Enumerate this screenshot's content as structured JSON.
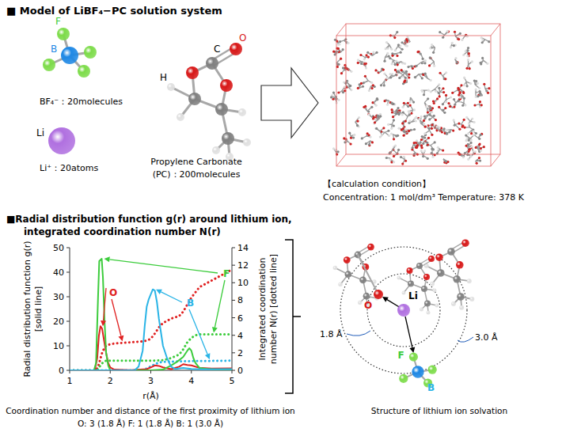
{
  "model": {
    "heading": "■ Model of LiBF₄−PC solution system",
    "bf4": {
      "atom_labels": [
        "F",
        "B"
      ],
      "caption": "BF₄⁻：20molecules"
    },
    "li": {
      "label": "Li",
      "caption": "Li⁺：20atoms"
    },
    "pc": {
      "atom_labels": [
        "H",
        "C",
        "O"
      ],
      "caption": [
        "Propylene Carbonate",
        "(PC)：200molecules"
      ]
    },
    "condition": {
      "heading": "【calculation condition】",
      "text": "Concentration: 1 mol/dm³ Temperature: 378 K"
    }
  },
  "rdf": {
    "heading": [
      "■Radial distribution function g(r) around lithium ion,",
      "integrated coordination number N(r)"
    ],
    "summary": [
      "Coordination number and distance of the first proximity of lithium ion",
      "O: 3 (1.8 Å) F: 1 (1.8 Å) B: 1 (3.0 Å)"
    ]
  },
  "structure": {
    "caption": "Structure of lithium ion solvation",
    "atom_labels": [
      "O",
      "Li",
      "F",
      "B"
    ],
    "distances": [
      "1.8 Å",
      "3.0 Å"
    ]
  },
  "chart_data": {
    "type": "line",
    "x_label": "r(Å)",
    "y_label": [
      "Radial distribution function g(r)",
      "[solid line]"
    ],
    "y2_label": [
      "Integrated coordination",
      "number N(r) [dotted line]"
    ],
    "xlim": [
      1,
      5
    ],
    "xticks": [
      1,
      2,
      3,
      4,
      5
    ],
    "ylim": [
      0,
      50
    ],
    "yticks": [
      0,
      10,
      20,
      30,
      40,
      50
    ],
    "y2lim": [
      0,
      14
    ],
    "y2ticks": [
      0,
      2,
      4,
      6,
      8,
      10,
      12,
      14
    ],
    "series": [
      {
        "name": "O",
        "color": "#e02020",
        "line_style": "solid",
        "x": [
          1,
          1.62,
          1.68,
          1.72,
          1.76,
          1.8,
          1.85,
          1.9,
          1.95,
          2.0,
          2.1,
          2.5,
          2.9,
          3.0,
          3.1,
          3.2,
          3.3,
          3.5,
          3.7,
          3.8,
          3.9,
          4.0,
          4.2,
          4.5,
          5.0
        ],
        "values": [
          0,
          0,
          5,
          14,
          18,
          17,
          12,
          7,
          3,
          1.2,
          0.3,
          0.1,
          0.5,
          1.2,
          2,
          1.8,
          1.2,
          0.5,
          1.5,
          2.5,
          2.2,
          2,
          1,
          0.7,
          0.8
        ]
      },
      {
        "name": "F",
        "color": "#3ccc3c",
        "line_style": "solid",
        "x": [
          1,
          1.6,
          1.65,
          1.7,
          1.73,
          1.76,
          1.79,
          1.82,
          1.86,
          1.9,
          1.95,
          2.0,
          2.5,
          3.0,
          3.3,
          3.5,
          3.65,
          3.8,
          3.9,
          3.95,
          4.0,
          4.05,
          4.1,
          4.2,
          4.4,
          4.6,
          5.0
        ],
        "values": [
          0,
          0,
          3,
          30,
          44.5,
          45,
          45.5,
          38,
          20,
          7,
          2,
          0,
          0,
          0,
          0.3,
          2,
          3.5,
          5.5,
          8,
          9,
          8,
          5,
          3,
          1,
          0.6,
          0.4,
          0.4
        ]
      },
      {
        "name": "B",
        "color": "#2ab4e6",
        "line_style": "solid",
        "x": [
          1,
          2.6,
          2.7,
          2.8,
          2.85,
          2.9,
          2.95,
          3.0,
          3.05,
          3.1,
          3.15,
          3.2,
          3.3,
          3.4,
          3.5,
          3.6,
          3.8,
          4.0,
          4.3,
          5.0
        ],
        "values": [
          0,
          0,
          1.5,
          8,
          18,
          26,
          29,
          31,
          33,
          32.5,
          28,
          21,
          10,
          5,
          1.5,
          0.6,
          1,
          0.6,
          0.4,
          0.5
        ]
      },
      {
        "color": "#e02020",
        "line_style": "dotted",
        "axis": "y2",
        "x": [
          1,
          1.65,
          1.7,
          1.75,
          1.8,
          1.85,
          1.9,
          2.0,
          2.2,
          2.5,
          2.8,
          2.9,
          3.0,
          3.1,
          3.2,
          3.3,
          3.5,
          3.7,
          3.8,
          3.9,
          4.0,
          4.2,
          4.4,
          4.6,
          4.8,
          5.0
        ],
        "values": [
          0,
          0,
          0.4,
          1.2,
          2.0,
          2.5,
          2.8,
          3.0,
          3.1,
          3.2,
          3.3,
          3.4,
          3.6,
          4.2,
          4.9,
          5.4,
          5.9,
          6.2,
          6.7,
          7.5,
          8.3,
          9.5,
          10.0,
          10.5,
          11.0,
          11.5
        ]
      },
      {
        "color": "#3ccc3c",
        "line_style": "dotted",
        "axis": "y2",
        "x": [
          1,
          1.65,
          1.7,
          1.75,
          1.8,
          1.85,
          1.9,
          2.0,
          2.5,
          3.0,
          3.3,
          3.5,
          3.7,
          3.8,
          3.9,
          4.0,
          4.1,
          4.2,
          4.4,
          4.6,
          5.0
        ],
        "values": [
          0,
          0,
          0.1,
          0.5,
          0.8,
          1.0,
          1.1,
          1.1,
          1.1,
          1.1,
          1.15,
          1.4,
          1.8,
          2.4,
          3.2,
          3.7,
          4.0,
          4.1,
          4.1,
          4.1,
          4.1
        ]
      },
      {
        "color": "#2ab4e6",
        "line_style": "dotted",
        "axis": "y2",
        "x": [
          1,
          2.7,
          2.8,
          2.9,
          3.0,
          3.1,
          3.2,
          3.3,
          3.5,
          4.0,
          5.0
        ],
        "values": [
          0,
          0,
          0.05,
          0.2,
          0.45,
          0.7,
          0.9,
          0.97,
          1.0,
          1.05,
          1.1
        ]
      }
    ]
  }
}
